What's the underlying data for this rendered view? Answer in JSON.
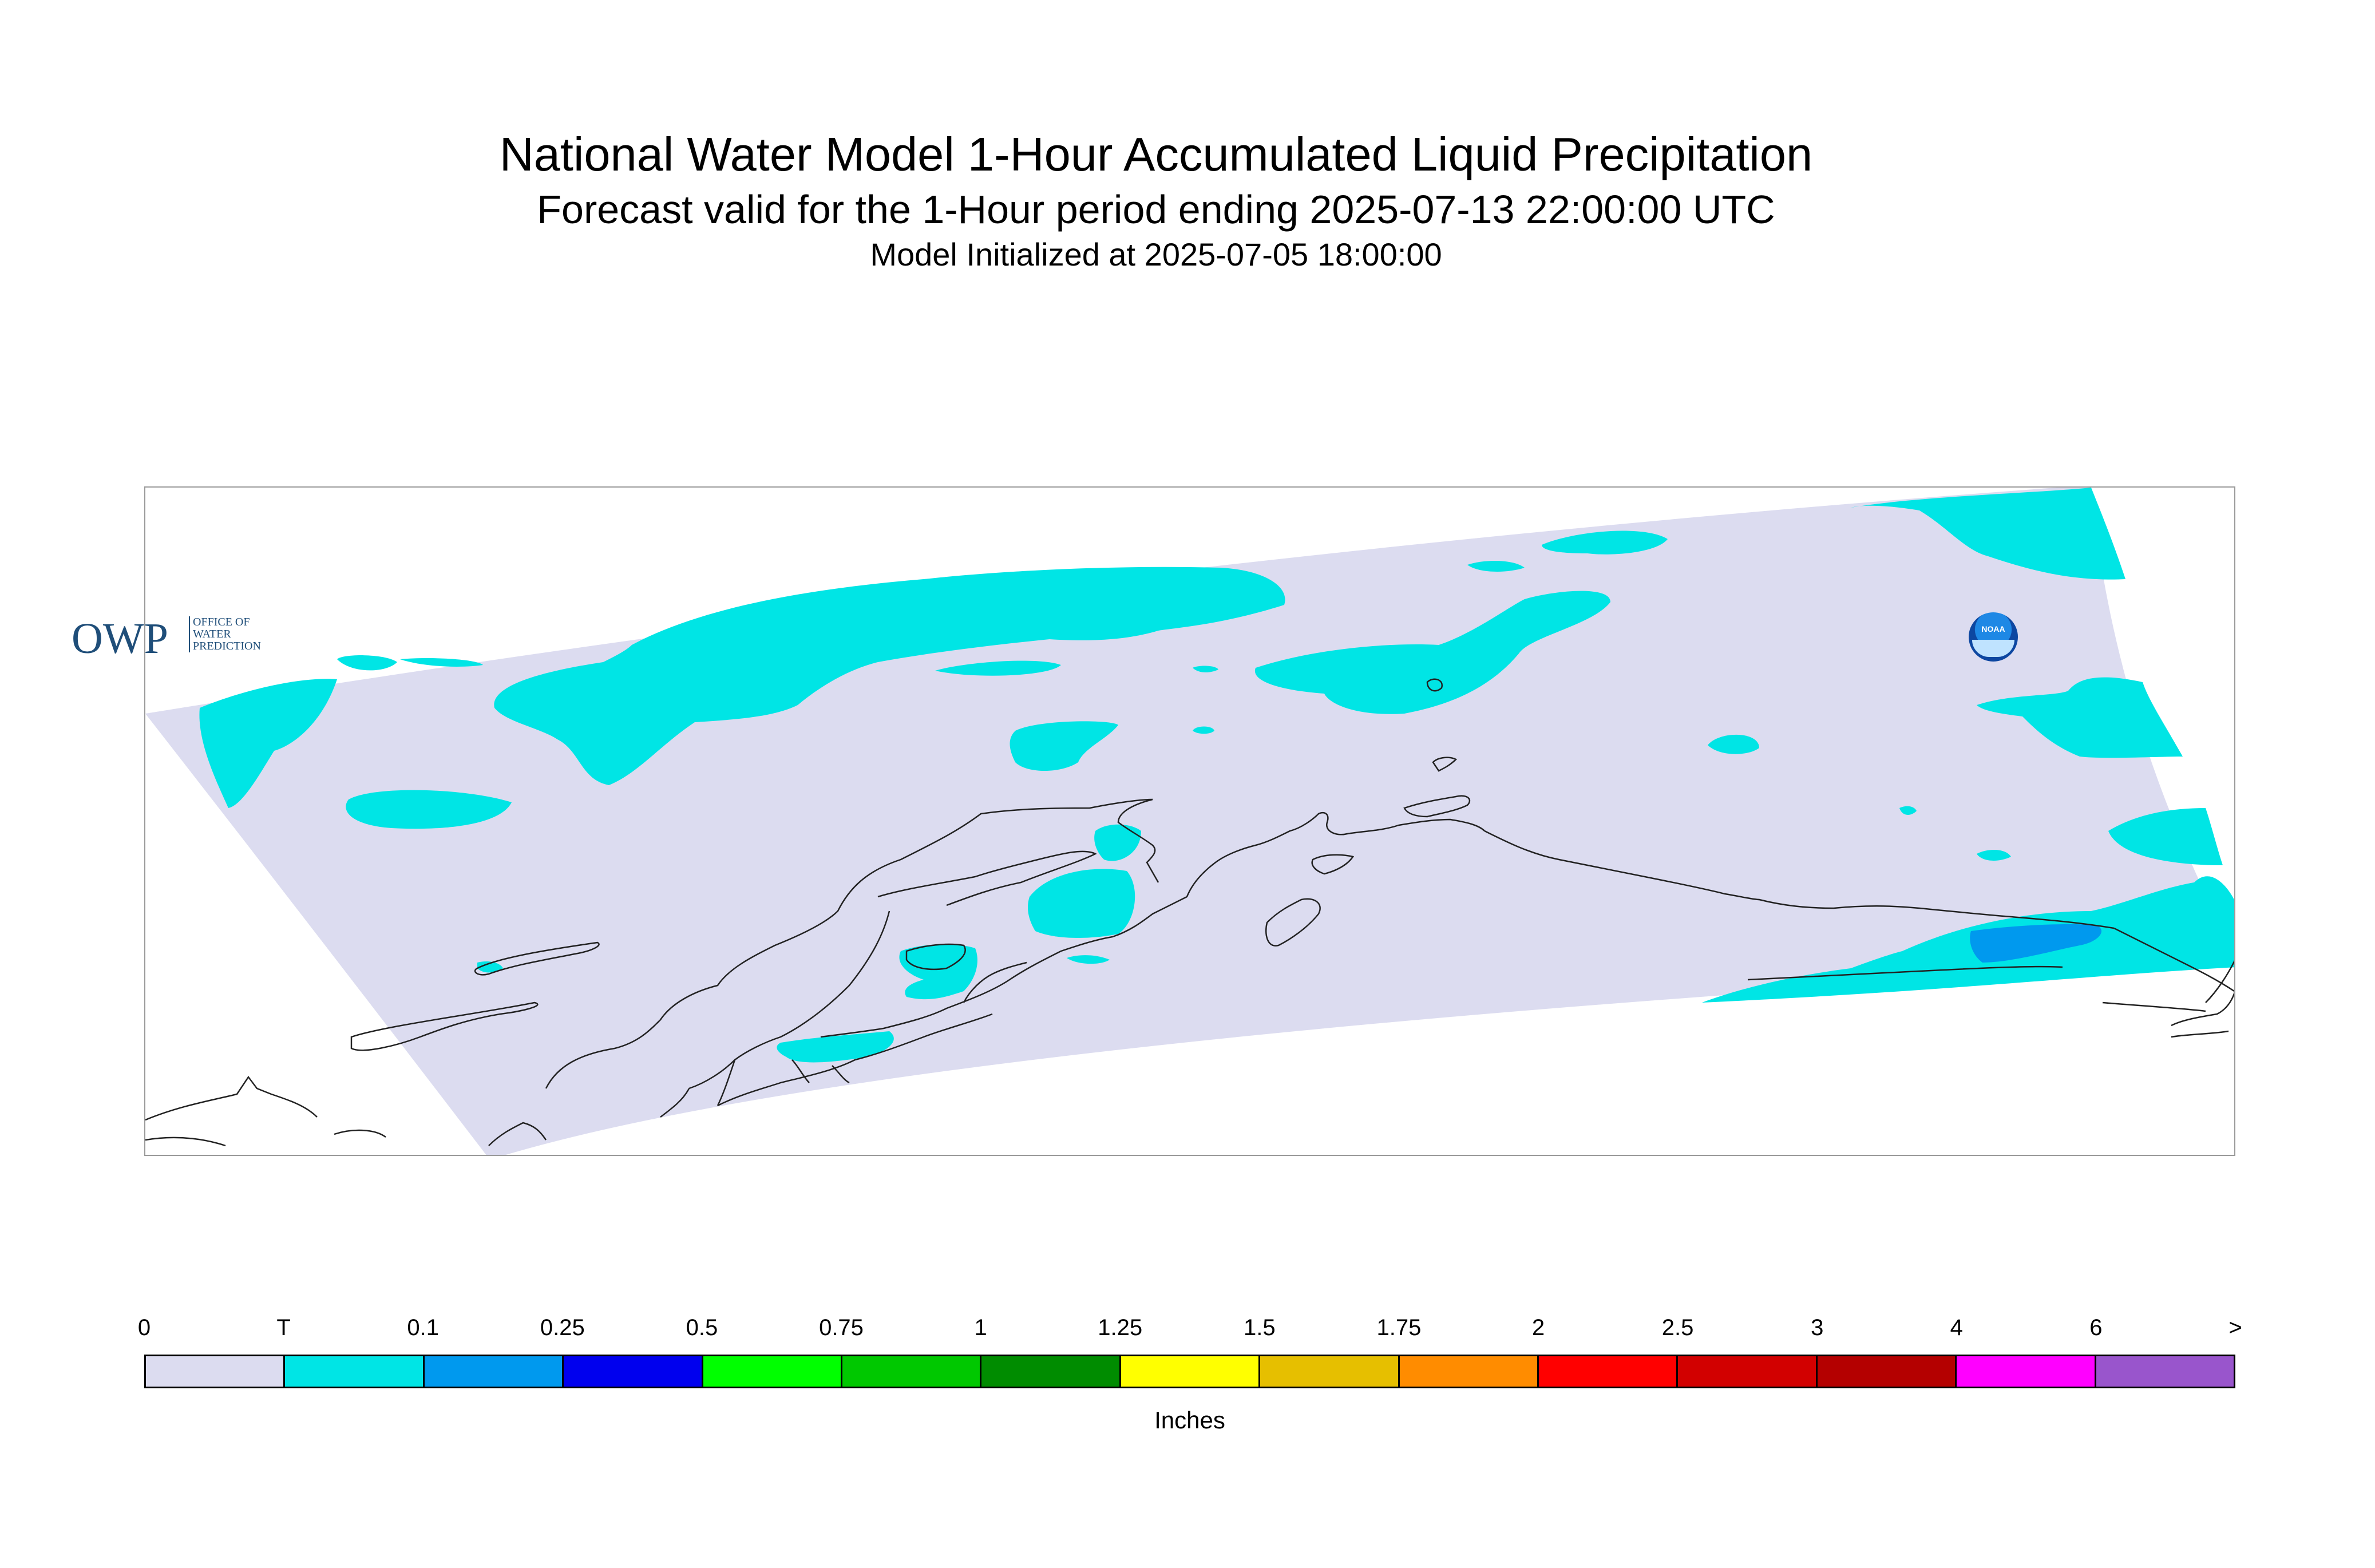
{
  "header": {
    "title": "National Water Model 1-Hour Accumulated Liquid Precipitation",
    "subtitle": "Forecast valid for the 1-Hour period ending 2025-07-13 22:00:00 UTC",
    "initialized": "Model Initialized at 2025-07-05 18:00:00"
  },
  "map": {
    "domain_color": "#dcdcf0",
    "background_color": "#ffffff",
    "coastline_color": "#222222",
    "precip_classes_present": [
      {
        "label": "T",
        "color": "#00e5e5"
      },
      {
        "label": "0.1",
        "color": "#0099ee"
      }
    ]
  },
  "logos": {
    "owp_main": "OWP",
    "owp_line1": "Office of",
    "owp_line2": "Water",
    "owp_line3": "Prediction",
    "noaa": "NOAA"
  },
  "colorbar": {
    "units": "Inches",
    "ticks": [
      "0",
      "T",
      "0.1",
      "0.25",
      "0.5",
      "0.75",
      "1",
      "1.25",
      "1.5",
      "1.75",
      "2",
      "2.5",
      "3",
      "4",
      "6",
      ">"
    ],
    "colors": [
      "#dcdcf0",
      "#00e5e5",
      "#0099ee",
      "#0000ee",
      "#00ff00",
      "#00c800",
      "#008c00",
      "#ffff00",
      "#e6bf00",
      "#ff8c00",
      "#ff0000",
      "#d20000",
      "#b40000",
      "#ff00ff",
      "#9955cc"
    ]
  }
}
